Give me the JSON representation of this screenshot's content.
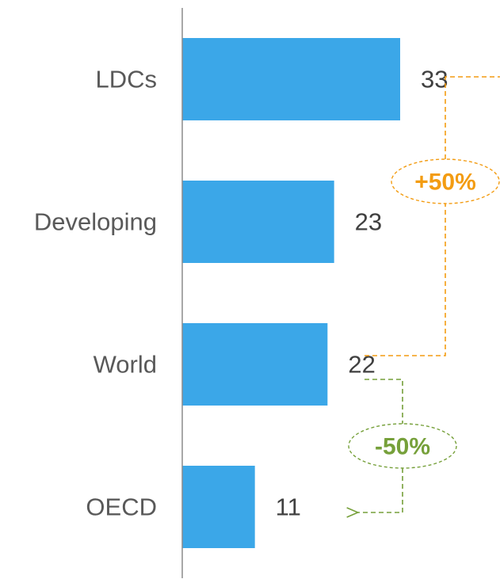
{
  "chart_data": {
    "type": "bar",
    "orientation": "horizontal",
    "categories": [
      "LDCs",
      "Developing",
      "World",
      "OECD"
    ],
    "values": [
      33,
      23,
      22,
      11
    ],
    "xlim": [
      0,
      48
    ],
    "grid": false,
    "legend": "none",
    "bar_color": "#3BA7E8",
    "axis_color": "#8C8C8C",
    "annotations": [
      {
        "label": "+50%",
        "color": "#F39C12",
        "from": "World",
        "to": "LDCs"
      },
      {
        "label": "-50%",
        "color": "#76A03A",
        "from": "World",
        "to": "OECD"
      }
    ]
  }
}
